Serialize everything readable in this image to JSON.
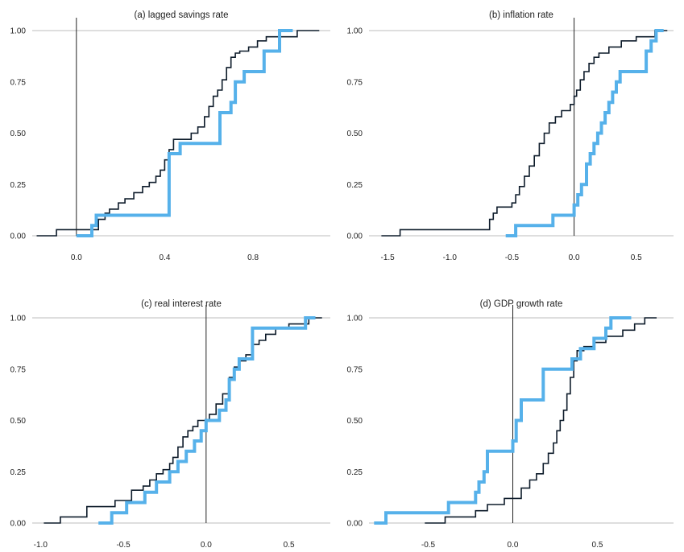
{
  "chart_data": [
    {
      "type": "line",
      "step": true,
      "title": "(a) lagged savings rate",
      "xlim": [
        -0.2,
        1.15
      ],
      "ylim": [
        0,
        1
      ],
      "xticks": [
        0.0,
        0.4,
        0.8
      ],
      "xtick_labels": [
        "0.0",
        "0.4",
        "0.8"
      ],
      "yticks": [
        0,
        0.25,
        0.5,
        0.75,
        1.0
      ],
      "ytick_labels": [
        "0.00",
        "0.25",
        "0.50",
        "0.75",
        "1.00"
      ],
      "vline_x": 0,
      "series": [
        {
          "style": "dark",
          "color": "#0d1b2a",
          "x": [
            -0.18,
            -0.09,
            0.05,
            0.1,
            0.13,
            0.15,
            0.19,
            0.22,
            0.26,
            0.3,
            0.33,
            0.36,
            0.38,
            0.4,
            0.42,
            0.44,
            0.48,
            0.52,
            0.55,
            0.58,
            0.6,
            0.62,
            0.64,
            0.66,
            0.68,
            0.7,
            0.72,
            0.74,
            0.78,
            0.82,
            0.86,
            0.92,
            1.0,
            1.1
          ],
          "y": [
            0.0,
            0.03,
            0.03,
            0.08,
            0.11,
            0.13,
            0.16,
            0.18,
            0.21,
            0.24,
            0.26,
            0.29,
            0.32,
            0.37,
            0.42,
            0.47,
            0.47,
            0.5,
            0.53,
            0.58,
            0.63,
            0.68,
            0.71,
            0.76,
            0.82,
            0.87,
            0.89,
            0.9,
            0.92,
            0.95,
            0.97,
            0.97,
            1.0,
            1.0
          ]
        },
        {
          "style": "light",
          "color": "#56b1ea",
          "x": [
            0.0,
            0.07,
            0.09,
            0.39,
            0.42,
            0.47,
            0.63,
            0.65,
            0.7,
            0.72,
            0.76,
            0.85,
            0.92,
            0.98
          ],
          "y": [
            0.0,
            0.05,
            0.1,
            0.1,
            0.4,
            0.45,
            0.45,
            0.6,
            0.65,
            0.75,
            0.8,
            0.9,
            1.0,
            1.0
          ]
        }
      ]
    },
    {
      "type": "line",
      "step": true,
      "title": "(b) inflation rate",
      "xlim": [
        -1.65,
        0.8
      ],
      "ylim": [
        0,
        1
      ],
      "xticks": [
        -1.5,
        -1.0,
        -0.5,
        0.0,
        0.5
      ],
      "xtick_labels": [
        "-1.5",
        "-1.0",
        "-0.5",
        "0.0",
        "0.5"
      ],
      "yticks": [
        0,
        0.25,
        0.5,
        0.75,
        1.0
      ],
      "ytick_labels": [
        "0.00",
        "0.25",
        "0.50",
        "0.75",
        "1.00"
      ],
      "vline_x": 0,
      "series": [
        {
          "style": "dark",
          "color": "#0d1b2a",
          "x": [
            -1.55,
            -1.4,
            -0.68,
            -0.65,
            -0.62,
            -0.5,
            -0.47,
            -0.44,
            -0.4,
            -0.36,
            -0.32,
            -0.28,
            -0.24,
            -0.2,
            -0.15,
            -0.1,
            -0.06,
            -0.03,
            0.0,
            0.02,
            0.05,
            0.08,
            0.12,
            0.16,
            0.2,
            0.28,
            0.38,
            0.5,
            0.65,
            0.75
          ],
          "y": [
            0.0,
            0.03,
            0.08,
            0.11,
            0.14,
            0.16,
            0.2,
            0.24,
            0.29,
            0.34,
            0.39,
            0.45,
            0.5,
            0.55,
            0.58,
            0.61,
            0.61,
            0.64,
            0.68,
            0.71,
            0.76,
            0.8,
            0.84,
            0.87,
            0.89,
            0.92,
            0.95,
            0.97,
            1.0,
            1.0
          ]
        },
        {
          "style": "light",
          "color": "#56b1ea",
          "x": [
            -0.55,
            -0.47,
            -0.17,
            0.0,
            0.03,
            0.06,
            0.1,
            0.13,
            0.16,
            0.19,
            0.22,
            0.25,
            0.28,
            0.31,
            0.34,
            0.37,
            0.4,
            0.58,
            0.62,
            0.66,
            0.72
          ],
          "y": [
            0.0,
            0.05,
            0.1,
            0.15,
            0.2,
            0.25,
            0.35,
            0.4,
            0.45,
            0.5,
            0.55,
            0.6,
            0.65,
            0.7,
            0.75,
            0.8,
            0.8,
            0.9,
            0.95,
            1.0,
            1.0
          ]
        }
      ]
    },
    {
      "type": "line",
      "step": true,
      "title": "(c) real interest rate",
      "xlim": [
        -1.05,
        0.75
      ],
      "ylim": [
        0,
        1
      ],
      "xticks": [
        -1.0,
        -0.5,
        0.0,
        0.5
      ],
      "xtick_labels": [
        "-1.0",
        "-0.5",
        "0.0",
        "0.5"
      ],
      "yticks": [
        0,
        0.25,
        0.5,
        0.75,
        1.0
      ],
      "ytick_labels": [
        "0.00",
        "0.25",
        "0.50",
        "0.75",
        "1.00"
      ],
      "vline_x": 0,
      "series": [
        {
          "style": "dark",
          "color": "#0d1b2a",
          "x": [
            -0.98,
            -0.88,
            -0.72,
            -0.55,
            -0.45,
            -0.38,
            -0.34,
            -0.3,
            -0.26,
            -0.22,
            -0.2,
            -0.17,
            -0.14,
            -0.11,
            -0.08,
            -0.05,
            -0.02,
            0.02,
            0.06,
            0.1,
            0.14,
            0.17,
            0.2,
            0.24,
            0.28,
            0.32,
            0.36,
            0.42,
            0.5,
            0.62,
            0.7
          ],
          "y": [
            0.0,
            0.03,
            0.08,
            0.11,
            0.16,
            0.18,
            0.21,
            0.24,
            0.26,
            0.29,
            0.32,
            0.37,
            0.42,
            0.45,
            0.47,
            0.5,
            0.5,
            0.53,
            0.58,
            0.63,
            0.71,
            0.76,
            0.79,
            0.82,
            0.87,
            0.89,
            0.92,
            0.95,
            0.97,
            1.0,
            1.0
          ]
        },
        {
          "style": "light",
          "color": "#56b1ea",
          "x": [
            -0.65,
            -0.57,
            -0.48,
            -0.37,
            -0.3,
            -0.22,
            -0.17,
            -0.12,
            -0.07,
            -0.03,
            0.0,
            0.08,
            0.12,
            0.14,
            0.17,
            0.2,
            0.28,
            0.6,
            0.66
          ],
          "y": [
            0.0,
            0.05,
            0.1,
            0.15,
            0.2,
            0.25,
            0.3,
            0.35,
            0.4,
            0.45,
            0.5,
            0.55,
            0.6,
            0.7,
            0.75,
            0.8,
            0.95,
            1.0,
            1.0
          ]
        }
      ]
    },
    {
      "type": "line",
      "step": true,
      "title": "(d) GDP growth rate",
      "xlim": [
        -0.85,
        0.95
      ],
      "ylim": [
        0,
        1
      ],
      "xticks": [
        -0.5,
        0.0,
        0.5
      ],
      "xtick_labels": [
        "-0.5",
        "0.0",
        "0.5"
      ],
      "yticks": [
        0,
        0.25,
        0.5,
        0.75,
        1.0
      ],
      "ytick_labels": [
        "0.00",
        "0.25",
        "0.50",
        "0.75",
        "1.00"
      ],
      "vline_x": 0,
      "series": [
        {
          "style": "dark",
          "color": "#0d1b2a",
          "x": [
            -0.52,
            -0.4,
            -0.22,
            -0.15,
            -0.05,
            0.05,
            0.1,
            0.14,
            0.18,
            0.21,
            0.24,
            0.26,
            0.28,
            0.3,
            0.32,
            0.34,
            0.36,
            0.38,
            0.42,
            0.48,
            0.55,
            0.65,
            0.72,
            0.78,
            0.85
          ],
          "y": [
            0.0,
            0.03,
            0.06,
            0.09,
            0.12,
            0.17,
            0.21,
            0.24,
            0.29,
            0.34,
            0.39,
            0.45,
            0.5,
            0.55,
            0.63,
            0.71,
            0.79,
            0.84,
            0.86,
            0.88,
            0.91,
            0.94,
            0.97,
            1.0,
            1.0
          ]
        },
        {
          "style": "light",
          "color": "#56b1ea",
          "x": [
            -0.82,
            -0.75,
            -0.38,
            -0.22,
            -0.2,
            -0.17,
            -0.15,
            -0.1,
            0.0,
            0.02,
            0.05,
            0.18,
            0.35,
            0.4,
            0.48,
            0.55,
            0.58,
            0.7
          ],
          "y": [
            0.0,
            0.05,
            0.1,
            0.15,
            0.2,
            0.25,
            0.35,
            0.35,
            0.4,
            0.5,
            0.6,
            0.75,
            0.8,
            0.85,
            0.9,
            0.95,
            1.0,
            1.0
          ]
        }
      ]
    }
  ]
}
